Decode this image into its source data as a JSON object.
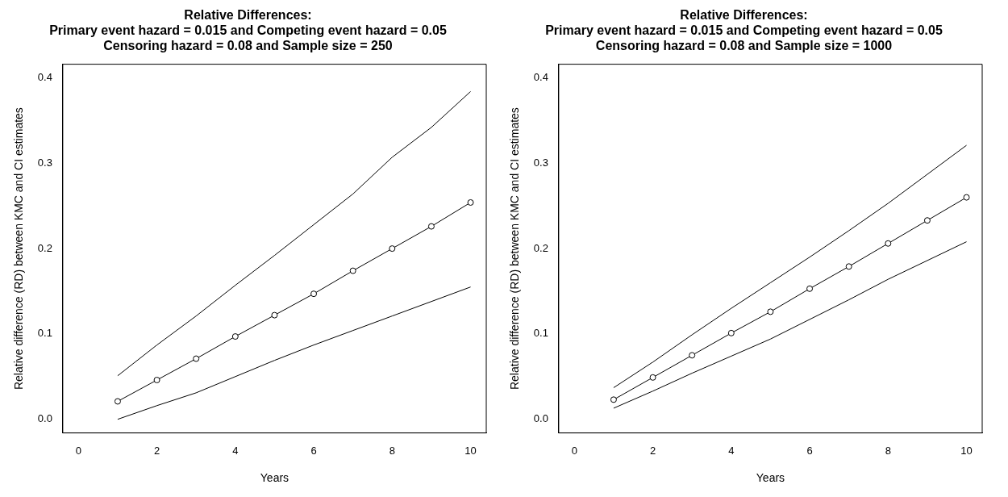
{
  "chart_data": [
    {
      "type": "line",
      "title": [
        "Relative Differences:",
        "Primary event hazard = 0.015 and Competing event hazard = 0.05",
        "Censoring hazard = 0.08 and Sample size = 250"
      ],
      "xlabel": "Years",
      "ylabel": "Relative difference (RD) between KMC and CI estimates",
      "x": [
        1,
        2,
        3,
        4,
        5,
        6,
        7,
        8,
        9,
        10
      ],
      "series": [
        {
          "color": "#000000",
          "marker": "none",
          "values": [
            0.051,
            0.087,
            0.121,
            0.157,
            0.192,
            0.228,
            0.264,
            0.307,
            0.342,
            0.384
          ]
        },
        {
          "color": "#000000",
          "marker": "circle",
          "values": [
            0.021,
            0.046,
            0.071,
            0.097,
            0.122,
            0.147,
            0.174,
            0.2,
            0.226,
            0.254
          ]
        },
        {
          "color": "#000000",
          "marker": "none",
          "values": [
            0.0,
            0.016,
            0.031,
            0.05,
            0.069,
            0.087,
            0.104,
            0.121,
            0.138,
            0.155
          ]
        }
      ],
      "xlim": [
        -0.4,
        10.4
      ],
      "xticks": [
        0,
        2,
        4,
        6,
        8,
        10
      ],
      "ylim": [
        -0.016,
        0.416
      ],
      "yticks": [
        {
          "value": 0,
          "label": "0.0"
        },
        0.1,
        0.2,
        0.3,
        0.4
      ],
      "grid": false,
      "legend": false
    },
    {
      "type": "line",
      "title": [
        "Relative Differences:",
        "Primary event hazard = 0.015 and Competing event hazard = 0.05",
        "Censoring hazard = 0.08 and Sample size = 1000"
      ],
      "xlabel": "Years",
      "ylabel": "Relative difference (RD) between KMC and CI estimates",
      "x": [
        1,
        2,
        3,
        4,
        5,
        6,
        7,
        8,
        9,
        10
      ],
      "series": [
        {
          "color": "#000000",
          "marker": "none",
          "values": [
            0.037,
            0.067,
            0.099,
            0.13,
            0.16,
            0.19,
            0.221,
            0.253,
            0.287,
            0.321
          ]
        },
        {
          "color": "#000000",
          "marker": "circle",
          "values": [
            0.023,
            0.049,
            0.075,
            0.101,
            0.126,
            0.153,
            0.179,
            0.206,
            0.233,
            0.26
          ]
        },
        {
          "color": "#000000",
          "marker": "none",
          "values": [
            0.013,
            0.033,
            0.054,
            0.074,
            0.094,
            0.117,
            0.14,
            0.164,
            0.186,
            0.208
          ]
        }
      ],
      "xlim": [
        -0.4,
        10.4
      ],
      "xticks": [
        0,
        2,
        4,
        6,
        8,
        10
      ],
      "ylim": [
        -0.016,
        0.416
      ],
      "yticks": [
        {
          "value": 0,
          "label": "0.0"
        },
        0.1,
        0.2,
        0.3,
        0.4
      ],
      "grid": false,
      "legend": false
    }
  ]
}
